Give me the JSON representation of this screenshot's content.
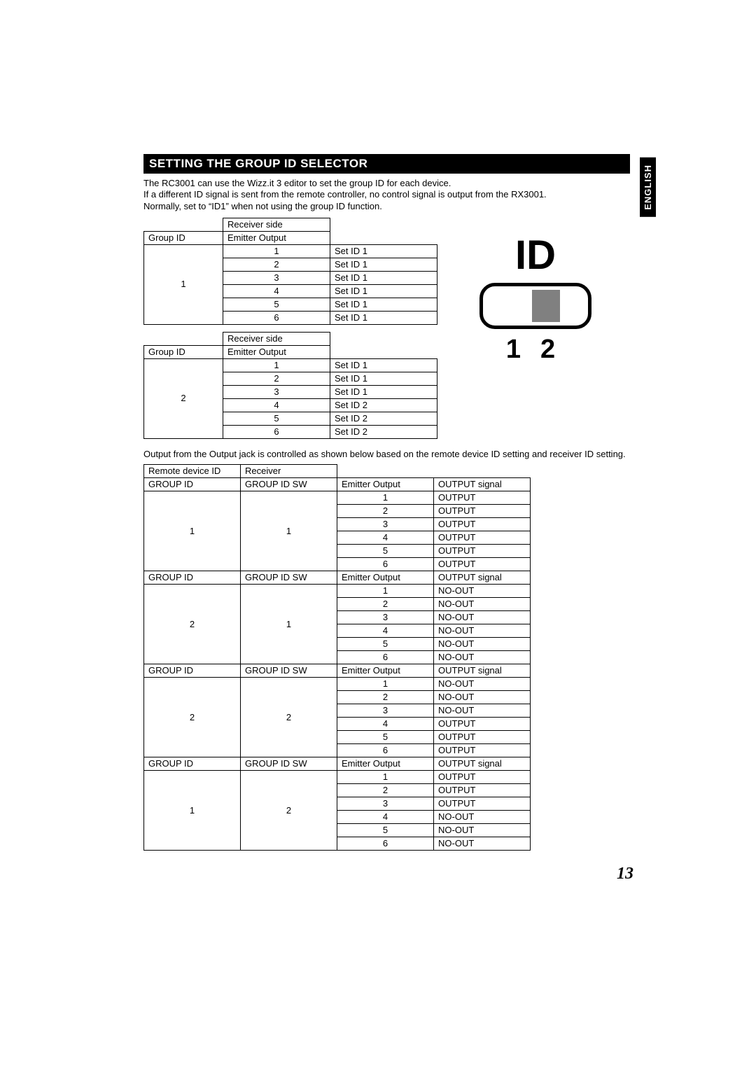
{
  "heading": "SETTING THE GROUP ID SELECTOR",
  "language_tab": "ENGLISH",
  "intro_lines": [
    "The RC3001 can use the Wizz.it 3 editor to set the group ID for each device.",
    "If a different ID signal is sent from the remote controller, no control signal is output from the RX3001.",
    "Normally, set to “ID1” when not using the group ID function."
  ],
  "table_a_header": {
    "receiver_side": "Receiver side",
    "group_id": "Group ID",
    "emitter_output": "Emitter Output"
  },
  "table_a_groups": [
    {
      "group": "1",
      "rows": [
        [
          "1",
          "Set ID 1"
        ],
        [
          "2",
          "Set ID 1"
        ],
        [
          "3",
          "Set ID 1"
        ],
        [
          "4",
          "Set ID 1"
        ],
        [
          "5",
          "Set ID 1"
        ],
        [
          "6",
          "Set ID 1"
        ]
      ]
    },
    {
      "group": "2",
      "rows": [
        [
          "1",
          "Set ID 1"
        ],
        [
          "2",
          "Set ID 1"
        ],
        [
          "3",
          "Set ID 1"
        ],
        [
          "4",
          "Set ID 2"
        ],
        [
          "5",
          "Set ID 2"
        ],
        [
          "6",
          "Set ID 2"
        ]
      ]
    }
  ],
  "switch": {
    "label": "ID",
    "n1": "1",
    "n2": "2"
  },
  "para2": "Output from the Output jack is controlled as shown below based on the remote device ID setting and receiver ID setting.",
  "table_b_top_header": {
    "remote": "Remote device ID",
    "receiver": "Receiver"
  },
  "table_b_sub_header": {
    "group_id": "GROUP ID",
    "group_id_sw": "GROUP ID SW",
    "emitter_output": "Emitter Output",
    "output_signal": "OUTPUT signal"
  },
  "table_b_groups": [
    {
      "gid": "1",
      "gsw": "1",
      "rows": [
        [
          "1",
          "OUTPUT"
        ],
        [
          "2",
          "OUTPUT"
        ],
        [
          "3",
          "OUTPUT"
        ],
        [
          "4",
          "OUTPUT"
        ],
        [
          "5",
          "OUTPUT"
        ],
        [
          "6",
          "OUTPUT"
        ]
      ]
    },
    {
      "gid": "2",
      "gsw": "1",
      "rows": [
        [
          "1",
          "NO-OUT"
        ],
        [
          "2",
          "NO-OUT"
        ],
        [
          "3",
          "NO-OUT"
        ],
        [
          "4",
          "NO-OUT"
        ],
        [
          "5",
          "NO-OUT"
        ],
        [
          "6",
          "NO-OUT"
        ]
      ]
    },
    {
      "gid": "2",
      "gsw": "2",
      "rows": [
        [
          "1",
          "NO-OUT"
        ],
        [
          "2",
          "NO-OUT"
        ],
        [
          "3",
          "NO-OUT"
        ],
        [
          "4",
          "OUTPUT"
        ],
        [
          "5",
          "OUTPUT"
        ],
        [
          "6",
          "OUTPUT"
        ]
      ]
    },
    {
      "gid": "1",
      "gsw": "2",
      "rows": [
        [
          "1",
          "OUTPUT"
        ],
        [
          "2",
          "OUTPUT"
        ],
        [
          "3",
          "OUTPUT"
        ],
        [
          "4",
          "NO-OUT"
        ],
        [
          "5",
          "NO-OUT"
        ],
        [
          "6",
          "NO-OUT"
        ]
      ]
    }
  ],
  "page_number": "13"
}
